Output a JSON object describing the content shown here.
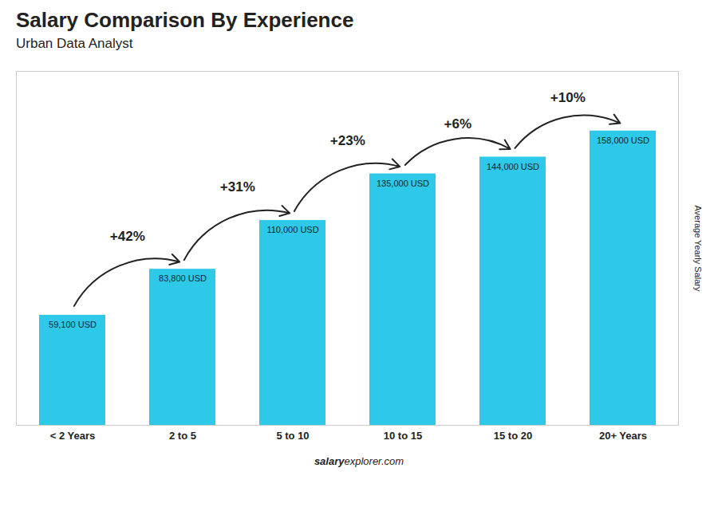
{
  "chart_data": {
    "type": "bar",
    "title": "Salary Comparison By Experience",
    "subtitle": "Urban Data Analyst",
    "ylabel": "Average Yearly Salary",
    "caption": [
      "salary",
      "explorer.com"
    ],
    "categories": [
      "< 2 Years",
      "2 to 5",
      "5 to 10",
      "10 to 15",
      "15 to 20",
      "20+ Years"
    ],
    "values": [
      59100,
      83800,
      110000,
      135000,
      144000,
      158000
    ],
    "value_labels": [
      "59,100 USD",
      "83,800 USD",
      "110,000 USD",
      "135,000 USD",
      "144,000 USD",
      "158,000 USD"
    ],
    "annotations": [
      "+42%",
      "+31%",
      "+23%",
      "+6%",
      "+10%"
    ],
    "color": "#2EC8E8",
    "ylim": [
      0,
      190000
    ],
    "tick_labels": "x",
    "data_labels": true,
    "grid": false
  }
}
